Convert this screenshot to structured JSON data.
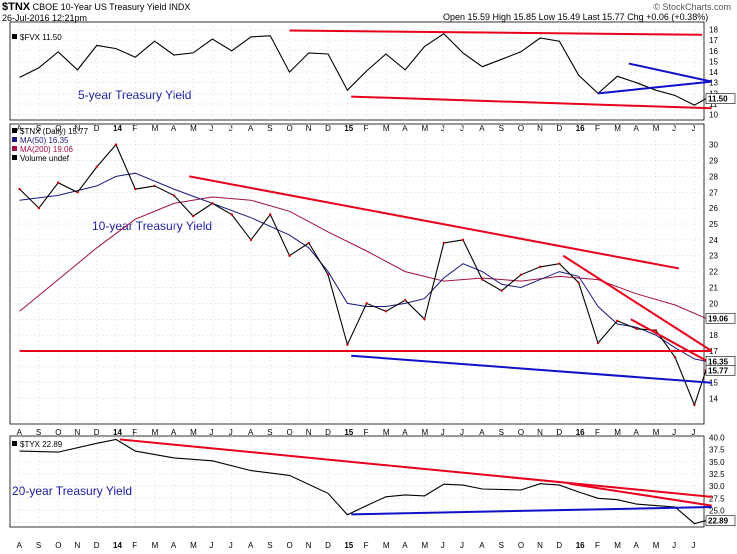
{
  "header": {
    "symbol": "$TNX",
    "description": "CBOE 10-Year US Treasury Yield",
    "exchange": "INDX",
    "date": "26-Jul-2016 12:21pm",
    "quote": "Open 15.59  High 15.85  Low 15.49  Last 15.77  Chg +0.06 (+0.38%)",
    "watermark": "© StockCharts.com"
  },
  "colors": {
    "red_trend": "#e8001c",
    "blue_trend": "#1010c8",
    "ma50": "#1a1a80",
    "ma200": "#a01040",
    "price": "#000000",
    "down_bar": "#cc0000",
    "annotation": "#1a1aa0"
  },
  "chart_data": [
    {
      "type": "line",
      "panel": "FVX",
      "legend": [
        "$FVX 11.50"
      ],
      "annotation": "5-year Treasury Yield",
      "ylim": [
        9.5,
        18.7
      ],
      "yticks": [
        10,
        11,
        12,
        13,
        14,
        15,
        16,
        17,
        18
      ],
      "last_label": "11.50",
      "x_months": [
        "A",
        "S",
        "O",
        "N",
        "D",
        "14",
        "F",
        "M",
        "A",
        "M",
        "J",
        "J",
        "A",
        "S",
        "O",
        "N",
        "D",
        "15",
        "F",
        "M",
        "A",
        "M",
        "J",
        "J",
        "A",
        "S",
        "O",
        "N",
        "D",
        "16",
        "F",
        "M",
        "A",
        "M",
        "J",
        "J"
      ],
      "series_points": [
        [
          0,
          13.5
        ],
        [
          1,
          14.4
        ],
        [
          2,
          15.9
        ],
        [
          3,
          14.2
        ],
        [
          4,
          16.5
        ],
        [
          5,
          16.2
        ],
        [
          6,
          15.4
        ],
        [
          7,
          16.9
        ],
        [
          8,
          15.6
        ],
        [
          9,
          15.8
        ],
        [
          10,
          17.1
        ],
        [
          11,
          16.0
        ],
        [
          12,
          17.3
        ],
        [
          13,
          17.4
        ],
        [
          14,
          14.0
        ],
        [
          15,
          15.8
        ],
        [
          16,
          15.7
        ],
        [
          17,
          12.3
        ],
        [
          18,
          14.1
        ],
        [
          19,
          15.7
        ],
        [
          20,
          14.2
        ],
        [
          21,
          16.4
        ],
        [
          22,
          17.6
        ],
        [
          23,
          15.8
        ],
        [
          24,
          14.5
        ],
        [
          25,
          15.2
        ],
        [
          26,
          15.9
        ],
        [
          27,
          17.2
        ],
        [
          28,
          16.9
        ],
        [
          29,
          13.7
        ],
        [
          30,
          12.0
        ],
        [
          31,
          13.6
        ],
        [
          32,
          13.0
        ],
        [
          33,
          12.3
        ],
        [
          34,
          11.8
        ],
        [
          35,
          10.9
        ],
        [
          35.6,
          11.5
        ]
      ],
      "trendlines": [
        {
          "color": "red",
          "points": [
            [
              14,
              17.9
            ],
            [
              35.4,
              17.5
            ]
          ]
        },
        {
          "color": "red",
          "points": [
            [
              17.2,
              11.7
            ],
            [
              35.9,
              10.6
            ]
          ]
        },
        {
          "color": "blue",
          "points": [
            [
              31.6,
              14.8
            ],
            [
              35.9,
              13.1
            ]
          ]
        },
        {
          "color": "blue",
          "points": [
            [
              30,
              12.0
            ],
            [
              35.9,
              13.1
            ]
          ]
        }
      ]
    },
    {
      "type": "line",
      "panel": "TNX",
      "legend": [
        "$TNX (Daily) 15.77",
        "MA(50) 16.35",
        "MA(200) 19.06",
        "Volume undef"
      ],
      "annotation": "10-year Treasury Yield",
      "ylim": [
        12.4,
        31.3
      ],
      "yticks": [
        14,
        15,
        16,
        17,
        18,
        19,
        20,
        21,
        22,
        23,
        24,
        25,
        26,
        27,
        28,
        29,
        30
      ],
      "tags": [
        {
          "value": 19.06,
          "label": "19.06",
          "series": "MA(200)"
        },
        {
          "value": 16.35,
          "label": "16.35",
          "series": "MA(50)"
        },
        {
          "value": 15.77,
          "label": "15.77",
          "series": "Last"
        }
      ],
      "x_months": [
        "A",
        "S",
        "O",
        "N",
        "D",
        "14",
        "F",
        "M",
        "A",
        "M",
        "J",
        "J",
        "A",
        "S",
        "O",
        "N",
        "D",
        "15",
        "F",
        "M",
        "A",
        "M",
        "J",
        "J",
        "A",
        "S",
        "O",
        "N",
        "D",
        "16",
        "F",
        "M",
        "A",
        "M",
        "J",
        "J"
      ],
      "price_points": [
        [
          0,
          27.2
        ],
        [
          1,
          26.0
        ],
        [
          2,
          27.6
        ],
        [
          3,
          27.0
        ],
        [
          4,
          28.6
        ],
        [
          5,
          30.0
        ],
        [
          6,
          27.2
        ],
        [
          7,
          27.4
        ],
        [
          8,
          26.8
        ],
        [
          9,
          25.5
        ],
        [
          10,
          26.3
        ],
        [
          11,
          25.6
        ],
        [
          12,
          24.0
        ],
        [
          13,
          25.6
        ],
        [
          14,
          23.0
        ],
        [
          15,
          23.8
        ],
        [
          16,
          21.8
        ],
        [
          17,
          17.4
        ],
        [
          18,
          20.0
        ],
        [
          19,
          19.5
        ],
        [
          20,
          20.2
        ],
        [
          21,
          19.0
        ],
        [
          22,
          23.8
        ],
        [
          23,
          24.0
        ],
        [
          24,
          21.5
        ],
        [
          25,
          20.8
        ],
        [
          26,
          21.8
        ],
        [
          27,
          22.3
        ],
        [
          28,
          22.5
        ],
        [
          29,
          21.3
        ],
        [
          30,
          17.5
        ],
        [
          31,
          18.9
        ],
        [
          32,
          18.4
        ],
        [
          33,
          18.3
        ],
        [
          34,
          16.6
        ],
        [
          35,
          13.6
        ],
        [
          35.6,
          15.77
        ]
      ],
      "ma50_points": [
        [
          0,
          26.5
        ],
        [
          2,
          26.8
        ],
        [
          4,
          27.4
        ],
        [
          5,
          28.0
        ],
        [
          6,
          28.2
        ],
        [
          8,
          27.2
        ],
        [
          10,
          26.3
        ],
        [
          12,
          25.4
        ],
        [
          14,
          24.3
        ],
        [
          15,
          23.5
        ],
        [
          16,
          22.0
        ],
        [
          17,
          20.0
        ],
        [
          18,
          19.8
        ],
        [
          19,
          19.8
        ],
        [
          20,
          20.0
        ],
        [
          21,
          20.3
        ],
        [
          22,
          21.6
        ],
        [
          23,
          22.5
        ],
        [
          24,
          22.0
        ],
        [
          25,
          21.2
        ],
        [
          26,
          21.0
        ],
        [
          27,
          21.5
        ],
        [
          28,
          22.0
        ],
        [
          29,
          21.7
        ],
        [
          30,
          19.8
        ],
        [
          31,
          18.7
        ],
        [
          32,
          18.5
        ],
        [
          33,
          18.0
        ],
        [
          34,
          17.2
        ],
        [
          35,
          16.5
        ],
        [
          35.6,
          16.35
        ]
      ],
      "ma200_points": [
        [
          0,
          19.5
        ],
        [
          2,
          21.5
        ],
        [
          4,
          23.5
        ],
        [
          6,
          25.3
        ],
        [
          8,
          26.3
        ],
        [
          10,
          26.7
        ],
        [
          12,
          26.5
        ],
        [
          14,
          25.8
        ],
        [
          16,
          24.5
        ],
        [
          18,
          23.3
        ],
        [
          20,
          22.0
        ],
        [
          22,
          21.4
        ],
        [
          24,
          21.6
        ],
        [
          26,
          21.4
        ],
        [
          28,
          21.7
        ],
        [
          30,
          21.5
        ],
        [
          32,
          20.6
        ],
        [
          34,
          19.9
        ],
        [
          35.6,
          19.06
        ]
      ],
      "trendlines": [
        {
          "color": "red",
          "points": [
            [
              8.8,
              28.0
            ],
            [
              34.2,
              22.2
            ]
          ]
        },
        {
          "color": "red",
          "points": [
            [
              0,
              17.0
            ],
            [
              35.9,
              17.0
            ]
          ]
        },
        {
          "color": "red",
          "points": [
            [
              28.2,
              23.0
            ],
            [
              35.9,
              17.0
            ]
          ]
        },
        {
          "color": "red",
          "points": [
            [
              31.7,
              19.0
            ],
            [
              35.9,
              16.2
            ]
          ]
        },
        {
          "color": "blue",
          "points": [
            [
              17.2,
              16.7
            ],
            [
              35.9,
              15.0
            ]
          ]
        }
      ]
    },
    {
      "type": "line",
      "panel": "TYX",
      "legend": [
        "$TYX 22.89"
      ],
      "annotation": "20-year Treasury Yield",
      "ylim": [
        21.6,
        40.3
      ],
      "yticks": [
        22.5,
        25.0,
        27.5,
        30.0,
        32.5,
        35.0,
        37.5,
        40.0
      ],
      "last_label": "22.89",
      "x_months": [
        "A",
        "S",
        "O",
        "N",
        "D",
        "14",
        "F",
        "M",
        "A",
        "M",
        "J",
        "J",
        "A",
        "S",
        "O",
        "N",
        "D",
        "15",
        "F",
        "M",
        "A",
        "M",
        "J",
        "J",
        "A",
        "S",
        "O",
        "N",
        "D",
        "16",
        "F",
        "M",
        "A",
        "M",
        "J",
        "J"
      ],
      "series_points": [
        [
          0,
          37.2
        ],
        [
          2,
          37.0
        ],
        [
          4,
          38.8
        ],
        [
          5,
          39.6
        ],
        [
          6,
          37.2
        ],
        [
          8,
          35.8
        ],
        [
          10,
          35.2
        ],
        [
          12,
          33.2
        ],
        [
          14,
          32.2
        ],
        [
          16,
          28.5
        ],
        [
          17,
          24.1
        ],
        [
          18,
          26.0
        ],
        [
          19,
          27.8
        ],
        [
          20,
          28.2
        ],
        [
          21,
          28.0
        ],
        [
          22,
          30.4
        ],
        [
          23,
          30.2
        ],
        [
          24,
          29.4
        ],
        [
          26,
          29.2
        ],
        [
          27,
          30.5
        ],
        [
          28,
          30.2
        ],
        [
          29,
          28.8
        ],
        [
          30,
          27.5
        ],
        [
          31,
          27.2
        ],
        [
          32,
          26.3
        ],
        [
          33,
          26.0
        ],
        [
          34,
          25.7
        ],
        [
          35,
          22.3
        ],
        [
          35.6,
          22.89
        ]
      ],
      "trendlines": [
        {
          "color": "red",
          "points": [
            [
              5.2,
              39.6
            ],
            [
              35.9,
              27.8
            ]
          ]
        },
        {
          "color": "red",
          "points": [
            [
              28.5,
              30.5
            ],
            [
              35.9,
              26.0
            ]
          ]
        },
        {
          "color": "blue",
          "points": [
            [
              17.2,
              24.2
            ],
            [
              35.9,
              25.7
            ]
          ]
        }
      ]
    }
  ]
}
